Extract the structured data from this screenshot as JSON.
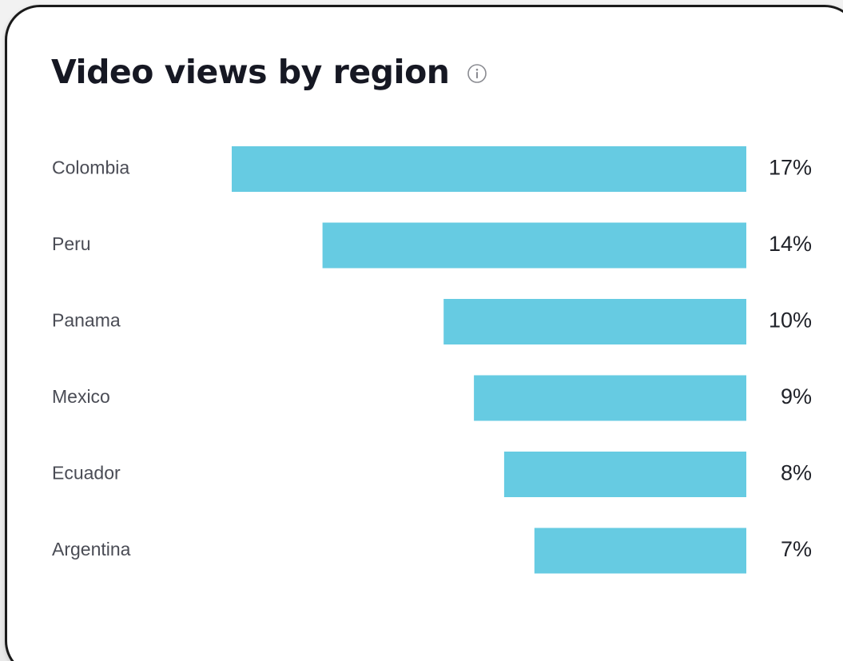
{
  "header": {
    "title": "Video views by region",
    "info_icon": "info-circle-icon"
  },
  "colors": {
    "bar": "#66cbe2",
    "title": "#161823",
    "label": "#4a4c55",
    "value": "#1f2128"
  },
  "chart_data": {
    "type": "bar",
    "orientation": "horizontal",
    "title": "Video views by region",
    "categories": [
      "Colombia",
      "Peru",
      "Panama",
      "Mexico",
      "Ecuador",
      "Argentina"
    ],
    "values": [
      17,
      14,
      10,
      9,
      8,
      7
    ],
    "value_labels": [
      "17%",
      "14%",
      "10%",
      "9%",
      "8%",
      "7%"
    ],
    "unit": "%",
    "bar_alignment": "right",
    "grid": false,
    "legend": "none"
  }
}
